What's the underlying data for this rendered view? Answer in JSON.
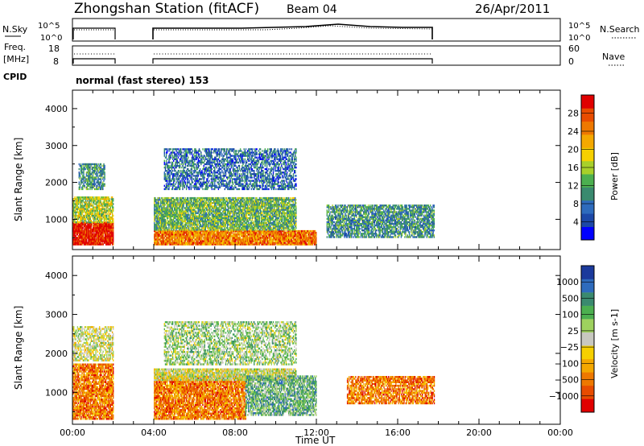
{
  "header": {
    "station_title": "Zhongshan Station (fitACF)",
    "beam": "Beam 04",
    "date": "26/Apr/2011"
  },
  "top_panels": {
    "nsky": {
      "label": "N.Sky",
      "ticks": [
        "10^5",
        "10^0"
      ]
    },
    "nsearch": {
      "label": "N.Search",
      "ticks": [
        "10^5",
        "10^0"
      ]
    },
    "freq": {
      "label_line1": "Freq.",
      "label_line2": "[MHz]",
      "ticks": [
        "18",
        "8"
      ]
    },
    "nave": {
      "label": "Nave",
      "ticks": [
        "60",
        "0"
      ]
    },
    "cpid": {
      "label": "CPID",
      "value": "normal (fast stereo) 153"
    }
  },
  "chart_data": [
    {
      "type": "heatmap",
      "name": "power-panel",
      "xlabel": "Time UT",
      "ylabel": "Slant Range [km]",
      "xlim": [
        0,
        24
      ],
      "ylim": [
        180,
        4500
      ],
      "yticks": [
        1000,
        2000,
        3000,
        4000
      ],
      "colorbar": {
        "label": "Power [dB]",
        "ticks": [
          "4",
          "8",
          "12",
          "16",
          "20",
          "24",
          "28"
        ],
        "colors": [
          "#0000ff",
          "#1c48a8",
          "#2e6bbd",
          "#3a8a6f",
          "#4caf50",
          "#a8d02a",
          "#f6d000",
          "#f4a800",
          "#ee7800",
          "#e84c00",
          "#e00000"
        ]
      },
      "data_gaps_hours": [
        [
          2.0,
          4.0
        ],
        [
          17.8,
          24.0
        ]
      ],
      "regions": [
        {
          "t": [
            0.0,
            2.0
          ],
          "r": [
            300,
            900
          ],
          "level": 10,
          "density": 0.95
        },
        {
          "t": [
            0.0,
            2.0
          ],
          "r": [
            900,
            1600
          ],
          "level": 5,
          "density": 0.8
        },
        {
          "t": [
            0.3,
            1.6
          ],
          "r": [
            1800,
            2500
          ],
          "level": 3,
          "density": 0.7
        },
        {
          "t": [
            4.0,
            12.0
          ],
          "r": [
            300,
            700
          ],
          "level": 8,
          "density": 0.95
        },
        {
          "t": [
            4.0,
            11.0
          ],
          "r": [
            700,
            1600
          ],
          "level": 4,
          "density": 0.85
        },
        {
          "t": [
            4.5,
            11.0
          ],
          "r": [
            1800,
            2900
          ],
          "level": 2,
          "density": 0.6
        },
        {
          "t": [
            12.5,
            17.8
          ],
          "r": [
            500,
            1400
          ],
          "level": 3,
          "density": 0.75
        }
      ]
    },
    {
      "type": "heatmap",
      "name": "velocity-panel",
      "xlabel": "Time UT",
      "ylabel": "Slant Range [km]",
      "xlim": [
        0,
        24
      ],
      "ylim": [
        180,
        4500
      ],
      "yticks": [
        1000,
        2000,
        3000,
        4000
      ],
      "xticks": [
        "00:00",
        "04:00",
        "08:00",
        "12:00",
        "16:00",
        "20:00",
        "00:00"
      ],
      "colorbar": {
        "label": "Velocity [m s-1]",
        "ticks": [
          "1000",
          "500",
          "100",
          "25",
          "−25",
          "−100",
          "−500",
          "−1000"
        ],
        "colors": [
          "#1b3a9c",
          "#2e6bbd",
          "#3a8a6f",
          "#4caf50",
          "#9ed15e",
          "#c8c8c0",
          "#f6d000",
          "#f4a800",
          "#ee7800",
          "#e84c00",
          "#e00000"
        ]
      },
      "data_gaps_hours": [
        [
          2.0,
          4.0
        ],
        [
          17.8,
          24.0
        ]
      ],
      "regions": [
        {
          "t": [
            0.0,
            2.0
          ],
          "r": [
            300,
            1700
          ],
          "level": 8,
          "density": 0.85
        },
        {
          "t": [
            0.0,
            2.0
          ],
          "r": [
            1800,
            2700
          ],
          "level": 5,
          "density": 0.6
        },
        {
          "t": [
            4.0,
            8.5
          ],
          "r": [
            300,
            1400
          ],
          "level": 8,
          "density": 0.85
        },
        {
          "t": [
            4.0,
            11.0
          ],
          "r": [
            1300,
            1600
          ],
          "level": 5,
          "density": 0.9
        },
        {
          "t": [
            8.5,
            12.0
          ],
          "r": [
            400,
            1400
          ],
          "level": 3,
          "density": 0.75
        },
        {
          "t": [
            4.5,
            11.0
          ],
          "r": [
            1700,
            2800
          ],
          "level": 4,
          "density": 0.55
        },
        {
          "t": [
            13.5,
            17.8
          ],
          "r": [
            700,
            1400
          ],
          "level": 8,
          "density": 0.75
        }
      ]
    }
  ]
}
